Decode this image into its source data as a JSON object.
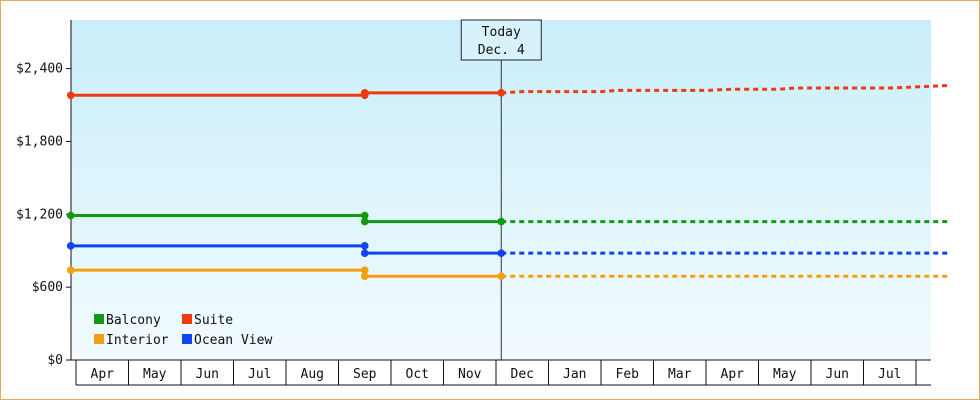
{
  "chart_data": {
    "type": "line",
    "title": "",
    "xlabel": "",
    "ylabel": "",
    "ylim": [
      0,
      2800
    ],
    "y_ticks": [
      "$0",
      "$600",
      "$1,200",
      "$1,800",
      "$2,400"
    ],
    "y_tick_values": [
      0,
      600,
      1200,
      1800,
      2400
    ],
    "months": [
      "Apr",
      "May",
      "Jun",
      "Jul",
      "Aug",
      "Sep",
      "Oct",
      "Nov",
      "Dec",
      "Jan",
      "Feb",
      "Mar",
      "Apr",
      "May",
      "Jun",
      "Jul"
    ],
    "x_range_months": [
      0,
      16.6
    ],
    "today": {
      "line1": "Today",
      "line2": "Dec. 4",
      "x_month": 8.1
    },
    "grid": false,
    "legend_position": "bottom-left",
    "series": [
      {
        "name": "Suite",
        "color": "#ee3a10",
        "solid": [
          [
            -0.1,
            2180
          ],
          [
            5.5,
            2180
          ],
          [
            5.5,
            2200
          ],
          [
            8.1,
            2200
          ]
        ],
        "markers": [
          [
            -0.1,
            2180
          ],
          [
            5.5,
            2180
          ],
          [
            5.5,
            2200
          ],
          [
            8.1,
            2200
          ]
        ],
        "dashed": [
          [
            8.1,
            2200
          ],
          [
            8.5,
            2210
          ],
          [
            10,
            2210
          ],
          [
            10.3,
            2220
          ],
          [
            12,
            2220
          ],
          [
            12.5,
            2230
          ],
          [
            13.4,
            2230
          ],
          [
            13.7,
            2240
          ],
          [
            15.5,
            2240
          ],
          [
            16.6,
            2260
          ]
        ]
      },
      {
        "name": "Balcony",
        "color": "#119911",
        "solid": [
          [
            -0.1,
            1190
          ],
          [
            5.5,
            1190
          ],
          [
            5.5,
            1140
          ],
          [
            8.1,
            1140
          ]
        ],
        "markers": [
          [
            -0.1,
            1190
          ],
          [
            5.5,
            1190
          ],
          [
            5.5,
            1140
          ],
          [
            8.1,
            1140
          ]
        ],
        "dashed": [
          [
            8.1,
            1140
          ],
          [
            16.6,
            1140
          ]
        ]
      },
      {
        "name": "Ocean View",
        "color": "#1144ee",
        "solid": [
          [
            -0.1,
            940
          ],
          [
            5.5,
            940
          ],
          [
            5.5,
            880
          ],
          [
            8.1,
            880
          ]
        ],
        "markers": [
          [
            -0.1,
            940
          ],
          [
            5.5,
            940
          ],
          [
            5.5,
            880
          ],
          [
            8.1,
            880
          ]
        ],
        "dashed": [
          [
            8.1,
            880
          ],
          [
            16.6,
            880
          ]
        ]
      },
      {
        "name": "Interior",
        "color": "#f2a010",
        "solid": [
          [
            -0.1,
            740
          ],
          [
            5.5,
            740
          ],
          [
            5.5,
            690
          ],
          [
            8.1,
            690
          ]
        ],
        "markers": [
          [
            -0.1,
            740
          ],
          [
            5.5,
            740
          ],
          [
            5.5,
            690
          ],
          [
            8.1,
            690
          ]
        ],
        "dashed": [
          [
            8.1,
            690
          ],
          [
            16.6,
            690
          ]
        ]
      }
    ],
    "legend": [
      {
        "name": "Balcony",
        "color": "#119911"
      },
      {
        "name": "Suite",
        "color": "#ee3a10"
      },
      {
        "name": "Interior",
        "color": "#f2a010"
      },
      {
        "name": "Ocean View",
        "color": "#1144ee"
      }
    ]
  }
}
